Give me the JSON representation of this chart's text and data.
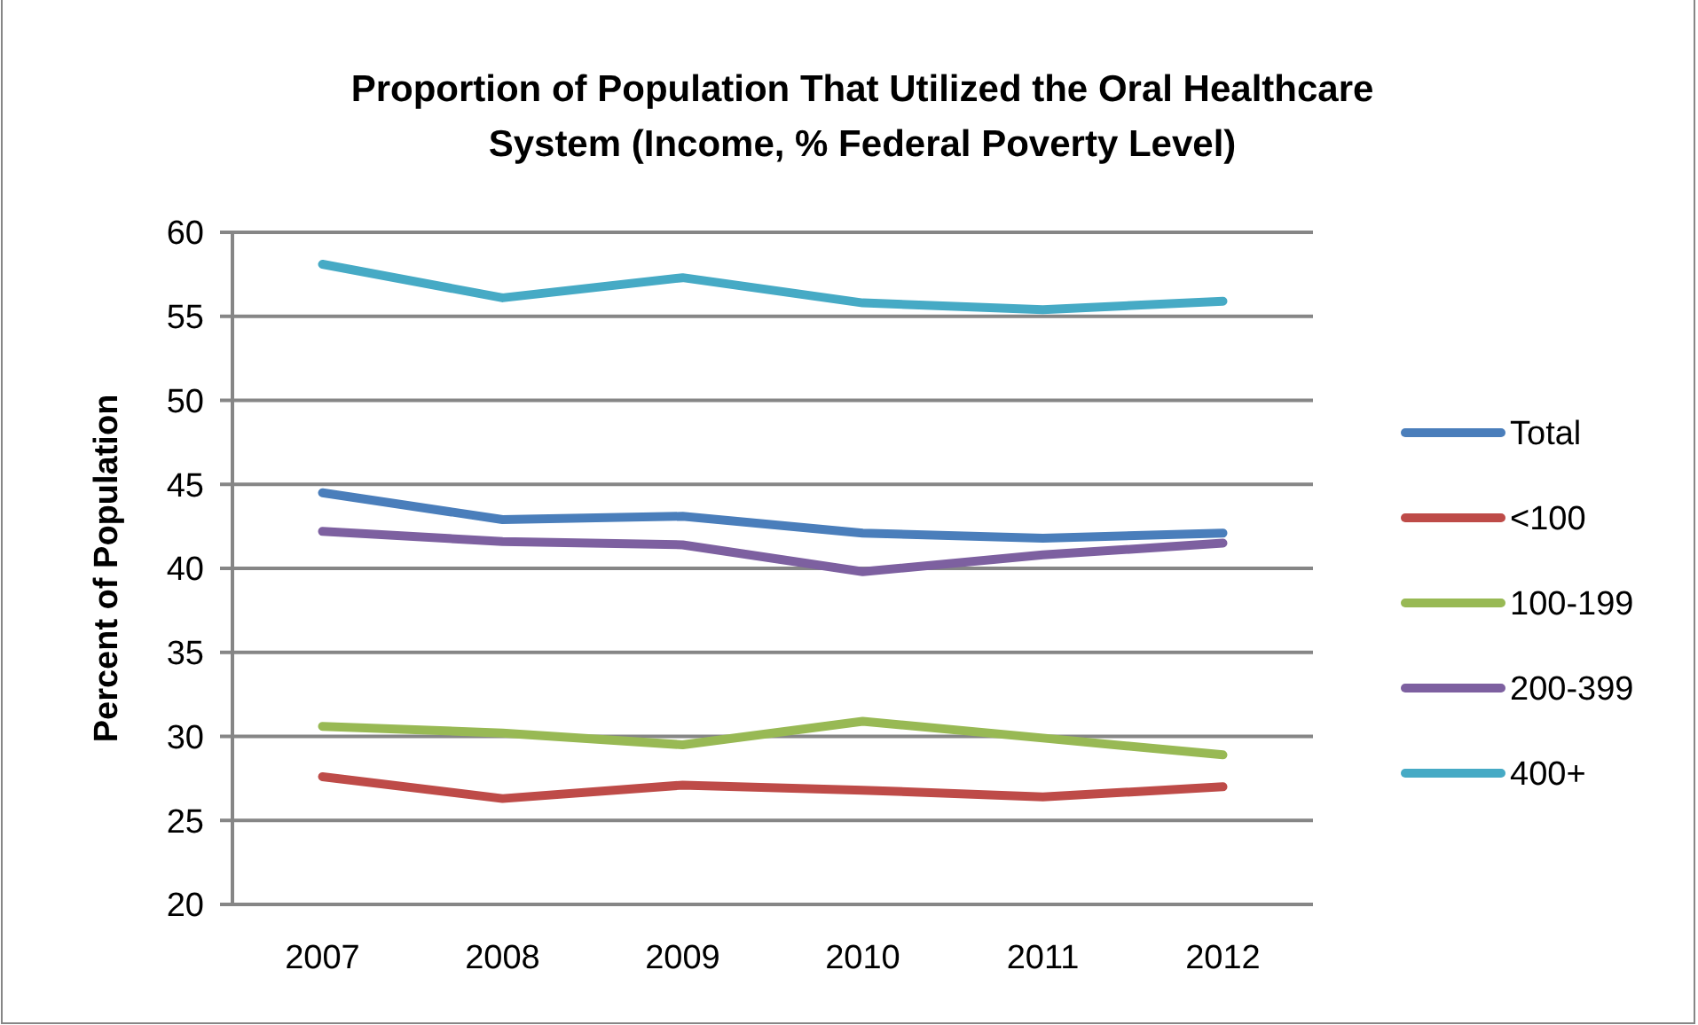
{
  "chart_data": {
    "type": "line",
    "title": "Proportion of Population That Utilized the Oral Healthcare System (Income, % Federal Poverty Level)",
    "ylabel": "Percent of Population",
    "categories": [
      "2007",
      "2008",
      "2009",
      "2010",
      "2011",
      "2012"
    ],
    "series": [
      {
        "name": "Total",
        "color": "#4a7ebb",
        "values": [
          44.5,
          42.9,
          43.1,
          42.1,
          41.8,
          42.1
        ]
      },
      {
        "name": "<100",
        "color": "#be4b48",
        "values": [
          27.6,
          26.3,
          27.1,
          26.8,
          26.4,
          27.0
        ]
      },
      {
        "name": "100-199",
        "color": "#98b954",
        "values": [
          30.6,
          30.2,
          29.5,
          30.9,
          29.9,
          28.9
        ]
      },
      {
        "name": "200-399",
        "color": "#7d60a0",
        "values": [
          42.2,
          41.6,
          41.4,
          39.8,
          40.8,
          41.5
        ]
      },
      {
        "name": "400+",
        "color": "#46aac5",
        "values": [
          58.1,
          56.1,
          57.3,
          55.8,
          55.4,
          55.9
        ]
      }
    ],
    "ylim": [
      20,
      60
    ],
    "yticks": [
      20,
      25,
      30,
      35,
      40,
      45,
      50,
      55,
      60
    ],
    "grid": "y",
    "legend": "right",
    "marker": "none",
    "line_style": "solid"
  }
}
